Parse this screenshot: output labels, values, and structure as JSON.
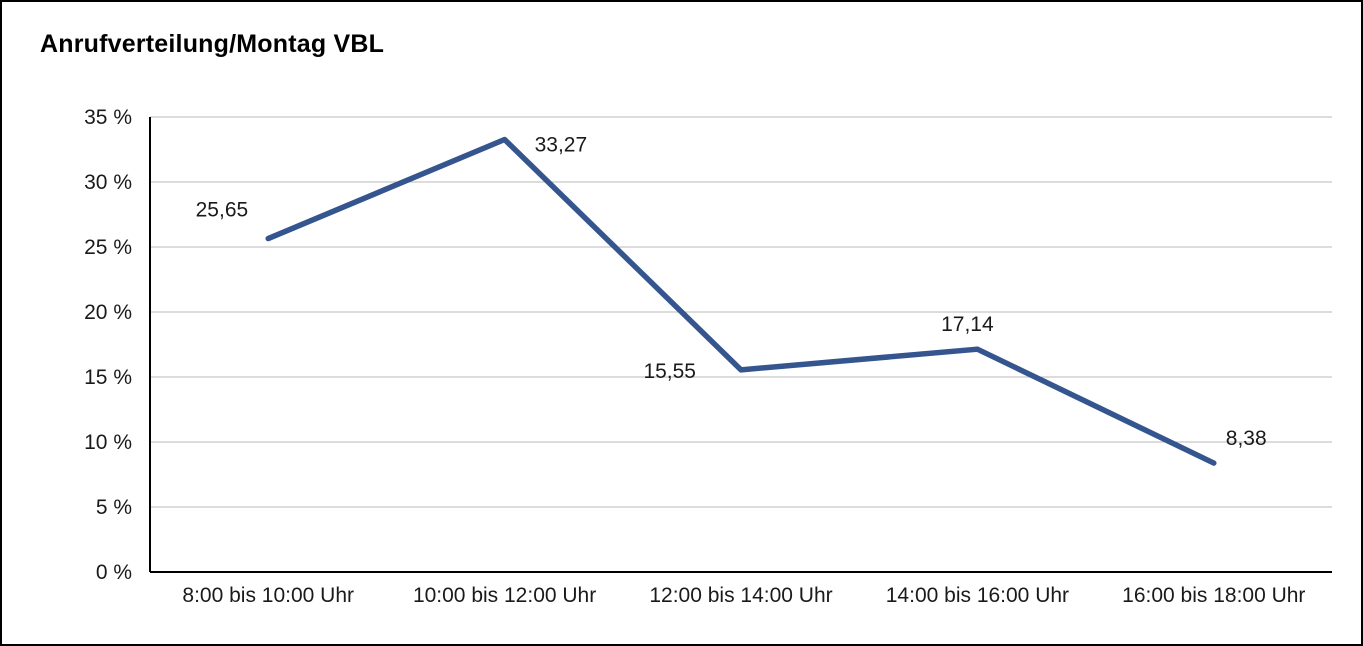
{
  "chart_data": {
    "type": "line",
    "title": "Anrufverteilung/Montag VBL",
    "categories": [
      "8:00 bis 10:00 Uhr",
      "10:00 bis 12:00 Uhr",
      "12:00 bis 14:00 Uhr",
      "14:00 bis 16:00 Uhr",
      "16:00 bis 18:00 Uhr"
    ],
    "values": [
      25.65,
      33.27,
      15.55,
      17.14,
      8.38
    ],
    "value_labels": [
      "25,65",
      "33,27",
      "15,55",
      "17,14",
      "8,38"
    ],
    "xlabel": "",
    "ylabel": "",
    "ylim": [
      0,
      35
    ],
    "yticks": [
      {
        "value": 0,
        "label": "0 %"
      },
      {
        "value": 5,
        "label": "5 %"
      },
      {
        "value": 10,
        "label": "10 %"
      },
      {
        "value": 15,
        "label": "15 %"
      },
      {
        "value": 20,
        "label": "20 %"
      },
      {
        "value": 25,
        "label": "25 %"
      },
      {
        "value": 30,
        "label": "30 %"
      },
      {
        "value": 35,
        "label": "35 %"
      }
    ],
    "grid": true,
    "legend_position": "none",
    "colors": {
      "line": "#35558F",
      "grid": "#B9B9B9",
      "axis": "#000000",
      "text": "#1A1A1A",
      "background": "#FFFFFF",
      "border": "#000000"
    }
  }
}
